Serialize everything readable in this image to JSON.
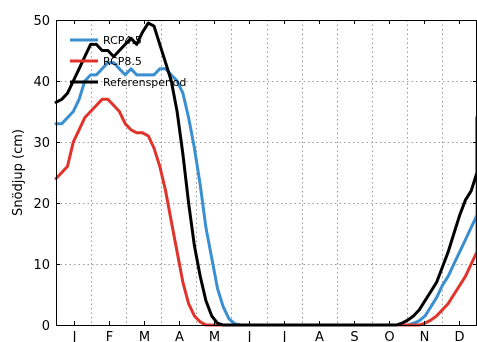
{
  "chart_data": {
    "type": "line",
    "title": "",
    "xlabel": "",
    "ylabel": "Snödjup (cm)",
    "months": [
      "J",
      "F",
      "M",
      "A",
      "M",
      "J",
      "J",
      "A",
      "S",
      "O",
      "N",
      "D"
    ],
    "x_range": [
      0,
      365
    ],
    "ylim": [
      0,
      50
    ],
    "yticks": [
      0,
      10,
      20,
      30,
      40,
      50
    ],
    "grid": true,
    "legend_position": "top-left",
    "x_step_days": 5,
    "series": [
      {
        "name": "RCP4.5",
        "color": "#3a8fd0",
        "values": [
          33,
          33,
          34,
          35,
          37,
          40,
          41,
          41,
          42,
          43,
          43,
          42,
          41,
          42,
          41,
          41,
          41,
          41,
          42,
          42,
          41,
          40,
          38,
          34,
          29,
          23,
          16,
          11,
          6,
          3,
          1,
          0.2,
          0,
          0,
          0,
          0,
          0,
          0,
          0,
          0,
          0,
          0,
          0,
          0,
          0,
          0,
          0,
          0,
          0,
          0,
          0,
          0,
          0,
          0,
          0,
          0,
          0,
          0,
          0,
          0,
          0,
          0,
          0.3,
          0.7,
          1.5,
          3,
          4.5,
          6.5,
          8,
          10,
          12,
          14,
          16,
          18,
          21,
          24,
          26,
          28,
          29
        ]
      },
      {
        "name": "RCP8.5",
        "color": "#e0332b",
        "values": [
          24,
          25,
          26,
          30,
          32,
          34,
          35,
          36,
          37,
          37,
          36,
          35,
          33,
          32,
          31.5,
          31.5,
          31,
          29,
          26,
          22,
          17,
          12,
          7,
          3.5,
          1.5,
          0.5,
          0,
          0,
          0,
          0,
          0,
          0,
          0,
          0,
          0,
          0,
          0,
          0,
          0,
          0,
          0,
          0,
          0,
          0,
          0,
          0,
          0,
          0,
          0,
          0,
          0,
          0,
          0,
          0,
          0,
          0,
          0,
          0,
          0,
          0,
          0,
          0,
          0,
          0,
          0.3,
          0.8,
          1.5,
          2.5,
          3.5,
          5,
          6.5,
          8,
          10,
          12,
          14,
          16,
          18,
          20,
          22
        ]
      },
      {
        "name": "Referensperiod",
        "color": "#000000",
        "values": [
          36.5,
          37,
          38,
          40,
          42,
          44,
          46,
          46,
          45,
          45,
          44,
          45,
          46,
          47,
          46,
          48,
          49.5,
          49,
          46,
          43,
          40,
          35,
          28,
          20,
          13,
          8,
          4,
          1.5,
          0.3,
          0,
          0,
          0,
          0,
          0,
          0,
          0,
          0,
          0,
          0,
          0,
          0,
          0,
          0,
          0,
          0,
          0,
          0,
          0,
          0,
          0,
          0,
          0,
          0,
          0,
          0,
          0,
          0,
          0,
          0,
          0,
          0.3,
          0.8,
          1.5,
          2.5,
          4,
          5.5,
          7,
          9.5,
          12,
          15,
          18,
          20.5,
          22,
          25,
          28,
          30,
          30.5,
          32,
          34
        ]
      }
    ]
  }
}
